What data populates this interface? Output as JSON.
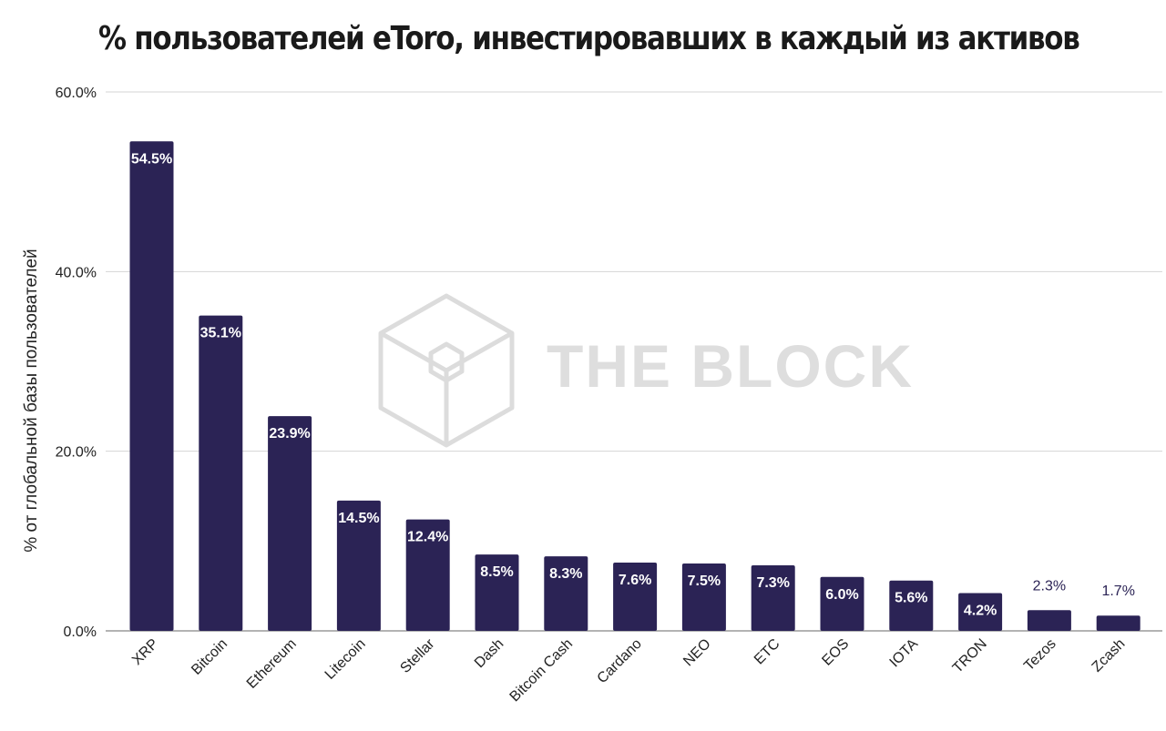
{
  "chart_data": {
    "type": "bar",
    "title": "% пользователей eToro, инвестировавших в каждый из активов",
    "xlabel": "",
    "ylabel": "% от глобальной базы пользователей",
    "ylim": [
      0,
      60
    ],
    "yticks": [
      "0.0%",
      "20.0%",
      "40.0%",
      "60.0%"
    ],
    "ytick_values": [
      0,
      20,
      40,
      60
    ],
    "grid": true,
    "legend": "none",
    "bar_color": "#2b2355",
    "categories": [
      "XRP",
      "Bitcoin",
      "Ethereum",
      "Litecoin",
      "Stellar",
      "Dash",
      "Bitcoin Cash",
      "Cardano",
      "NEO",
      "ETC",
      "EOS",
      "IOTA",
      "TRON",
      "Tezos",
      "Zcash"
    ],
    "values": [
      54.5,
      35.1,
      23.9,
      14.5,
      12.4,
      8.5,
      8.3,
      7.6,
      7.5,
      7.3,
      6.0,
      5.6,
      4.2,
      2.3,
      1.7
    ],
    "data_labels": [
      "54.5%",
      "35.1%",
      "23.9%",
      "14.5%",
      "12.4%",
      "8.5%",
      "8.3%",
      "7.6%",
      "7.5%",
      "7.3%",
      "6.0%",
      "5.6%",
      "4.2%",
      "2.3%",
      "1.7%"
    ]
  },
  "watermark": {
    "text": "THE BLOCK",
    "icon": "cube-logo-icon"
  }
}
